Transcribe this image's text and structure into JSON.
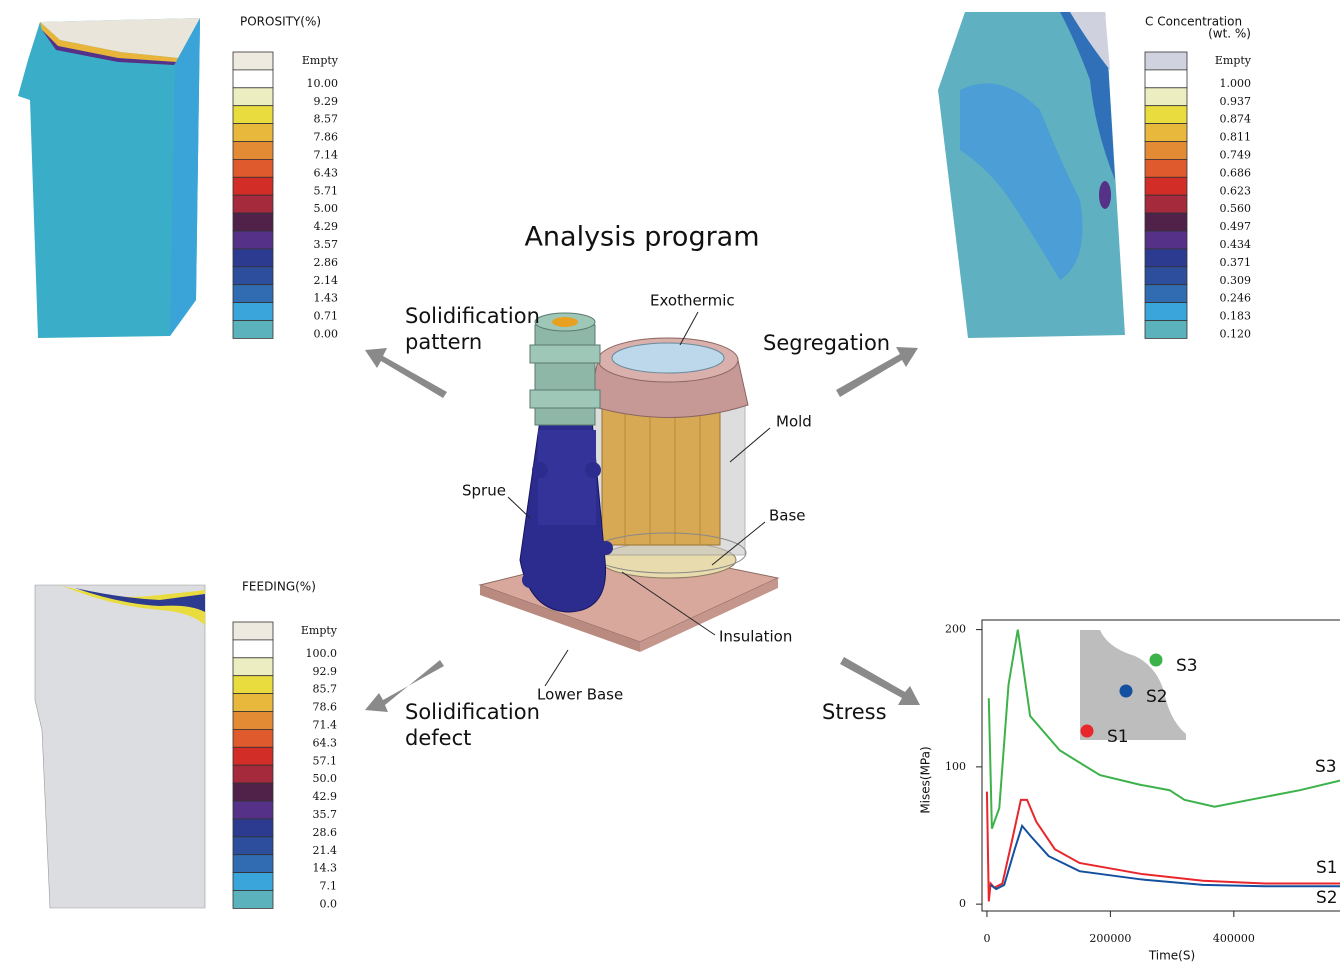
{
  "title": "Analysis program",
  "arrow_labels": {
    "pattern": [
      "Solidification",
      "pattern"
    ],
    "segregation": [
      "Segregation"
    ],
    "defect": [
      "Solidification",
      "defect"
    ],
    "stress": [
      "Stress"
    ]
  },
  "parts": [
    "Exothermic",
    "Mold",
    "Sprue",
    "Base",
    "Insulation",
    "Lower Base"
  ],
  "porosity": {
    "title": [
      "POROSITY(%)"
    ],
    "labels": [
      "Empty",
      "10.00",
      "9.29",
      "8.57",
      "7.86",
      "7.14",
      "6.43",
      "5.71",
      "5.00",
      "4.29",
      "3.57",
      "2.86",
      "2.14",
      "1.43",
      "0.71",
      "0.00"
    ],
    "colors": [
      "#eeeae0",
      "#ffffff",
      "#ecedc0",
      "#e9dc3f",
      "#e8b83c",
      "#e38b34",
      "#df5a2c",
      "#d32d27",
      "#a52a3c",
      "#512249",
      "#553187",
      "#2c3b8f",
      "#2d4e9c",
      "#316cb2",
      "#3aa5db",
      "#5bb2bd"
    ]
  },
  "segregation": {
    "title": [
      "C Concentration",
      "(wt. %)"
    ],
    "labels": [
      "Empty",
      "1.000",
      "0.937",
      "0.874",
      "0.811",
      "0.749",
      "0.686",
      "0.623",
      "0.560",
      "0.497",
      "0.434",
      "0.371",
      "0.309",
      "0.246",
      "0.183",
      "0.120"
    ],
    "colors": [
      "#d0d3df",
      "#ffffff",
      "#ecedc0",
      "#e9dc3f",
      "#e8b83c",
      "#e38b34",
      "#df5a2c",
      "#d32d27",
      "#a52a3c",
      "#512249",
      "#553187",
      "#2c3b8f",
      "#2d4e9c",
      "#316cb2",
      "#3aa5db",
      "#5bb2bd"
    ]
  },
  "feeding": {
    "title": [
      "FEEDING(%)"
    ],
    "labels": [
      "Empty",
      "100.0",
      "92.9",
      "85.7",
      "78.6",
      "71.4",
      "64.3",
      "57.1",
      "50.0",
      "42.9",
      "35.7",
      "28.6",
      "21.4",
      "14.3",
      "7.1",
      "0.0"
    ],
    "colors": [
      "#eeeae0",
      "#ffffff",
      "#ecedc0",
      "#e9dc3f",
      "#e8b83c",
      "#e38b34",
      "#df5a2c",
      "#d32d27",
      "#a52a3c",
      "#512249",
      "#553187",
      "#2c3b8f",
      "#2d4e9c",
      "#316cb2",
      "#3aa5db",
      "#5bb2bd"
    ]
  },
  "stress": {
    "type": "line",
    "x_label": "Time(S)",
    "y_label": "Mises(MPa)",
    "xlim": [
      -8000,
      572000
    ],
    "ylim": [
      -5,
      207
    ],
    "xticks": [
      0,
      200000,
      400000
    ],
    "yticks": [
      0,
      100,
      200
    ],
    "series": [
      {
        "name": "S1",
        "color": "#e8262b",
        "x": [
          0,
          3000,
          6000,
          12000,
          25000,
          40000,
          55000,
          65000,
          80000,
          110000,
          150000,
          250000,
          350000,
          450000,
          572000
        ],
        "values": [
          82,
          2,
          15,
          12,
          15,
          45,
          76,
          76,
          60,
          40,
          30,
          22,
          17,
          15,
          15
        ]
      },
      {
        "name": "S2",
        "color": "#1450a0",
        "x": [
          6000,
          15000,
          28000,
          45000,
          57000,
          70000,
          100000,
          150000,
          250000,
          350000,
          450000,
          572000
        ],
        "values": [
          14,
          11,
          14,
          40,
          57,
          50,
          35,
          24,
          18,
          14,
          13,
          13
        ]
      },
      {
        "name": "S3",
        "color": "#3cb24a",
        "x": [
          3000,
          8000,
          20000,
          35000,
          50000,
          70000,
          118000,
          183000,
          248000,
          296000,
          320000,
          369000,
          426000,
          507000,
          572000
        ],
        "values": [
          150,
          55,
          70,
          160,
          200,
          137,
          112,
          94,
          87,
          83,
          76,
          71,
          76,
          83,
          90
        ]
      }
    ]
  }
}
